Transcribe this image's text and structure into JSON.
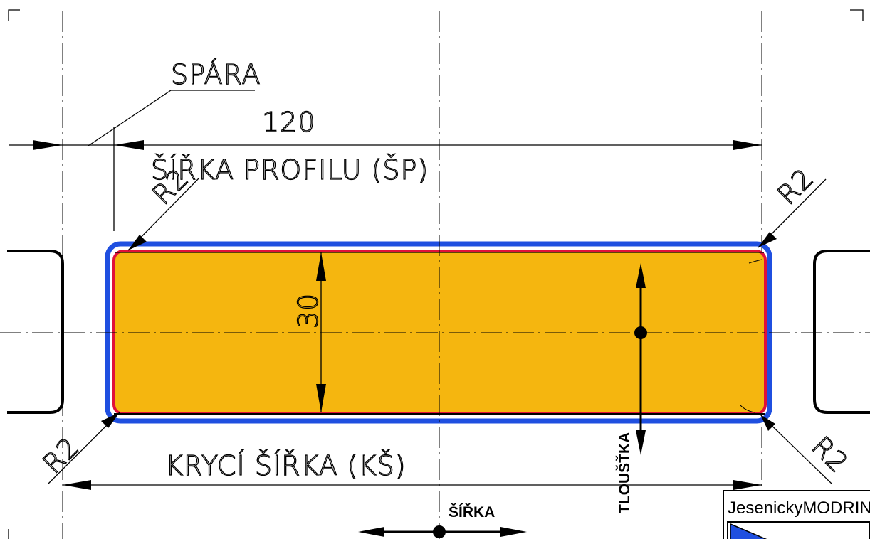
{
  "labels": {
    "gap": "SPÁRA",
    "width_value": "120",
    "profile_width": "ŠÍŘKA PROFILU (ŠP)",
    "thickness_value": "30",
    "cover_width": "KRYCÍ ŠÍŘKA (KŠ)",
    "radius": "R2",
    "thickness_axis": "TLOUŠŤKA",
    "width_axis": "ŠÍŘKA",
    "brand": "JesenickyMODRIN"
  },
  "colors": {
    "board_fill": "#f5b60f",
    "outer_outline": "#1f4fe0",
    "inner_outline": "#e0103a",
    "logo_blue": "#1f4fe0"
  }
}
